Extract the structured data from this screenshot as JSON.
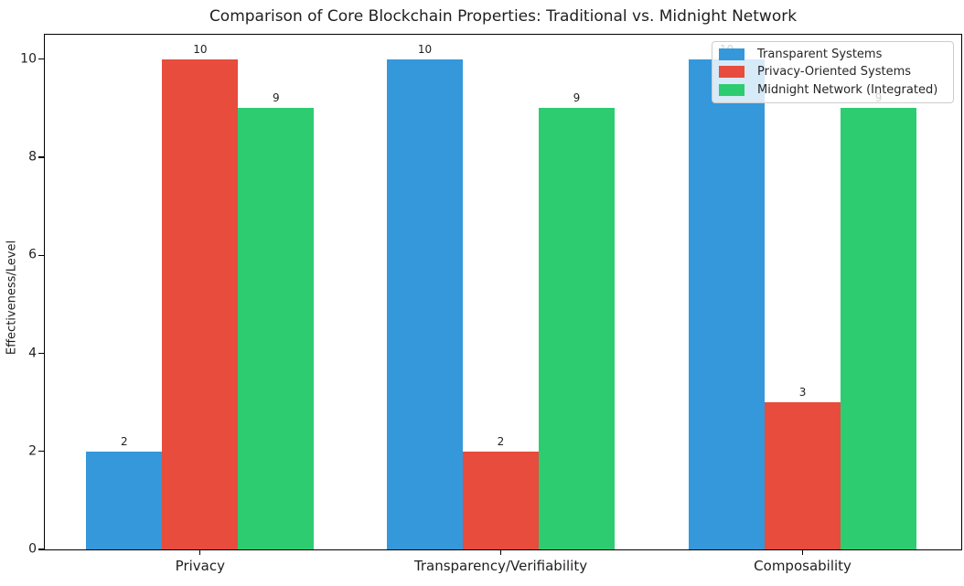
{
  "chart_data": {
    "type": "bar",
    "title": "Comparison of Core Blockchain Properties: Traditional vs. Midnight Network",
    "xlabel": "",
    "ylabel": "Effectiveness/Level",
    "categories": [
      "Privacy",
      "Transparency/Verifiability",
      "Composability"
    ],
    "series": [
      {
        "name": "Transparent Systems",
        "color": "#3498db",
        "values": [
          2,
          10,
          10
        ]
      },
      {
        "name": "Privacy-Oriented Systems",
        "color": "#e74c3c",
        "values": [
          10,
          2,
          3
        ]
      },
      {
        "name": "Midnight Network (Integrated)",
        "color": "#2ecc71",
        "values": [
          9,
          9,
          9
        ]
      }
    ],
    "yticks": [
      0,
      2,
      4,
      6,
      8,
      10
    ],
    "ylim": [
      0,
      10.5
    ],
    "bar_value_labels_shown": true,
    "grid": false,
    "legend_position": "upper right"
  }
}
